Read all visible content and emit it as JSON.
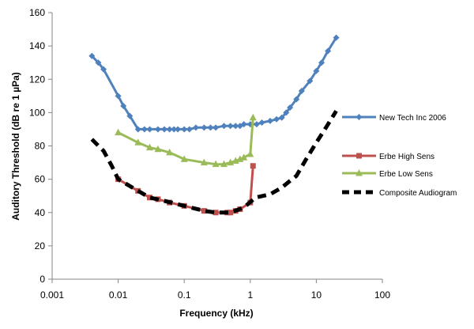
{
  "chart_data": {
    "type": "line",
    "title": "",
    "xlabel": "Frequency (kHz)",
    "ylabel": "Auditory Threshold (dB re 1 µPa)",
    "x_scale": "log",
    "xlim": [
      0.001,
      100
    ],
    "ylim": [
      0,
      160
    ],
    "x_ticks": [
      0.001,
      0.01,
      0.1,
      1,
      10,
      100
    ],
    "x_tick_labels": [
      "0.001",
      "0.01",
      "0.1",
      "1",
      "10",
      "100"
    ],
    "y_ticks": [
      0,
      20,
      40,
      60,
      80,
      100,
      120,
      140,
      160
    ],
    "y_tick_labels": [
      "0",
      "20",
      "40",
      "60",
      "80",
      "100",
      "120",
      "140",
      "160"
    ],
    "grid": false,
    "legend_position": "right",
    "series": [
      {
        "name": "New Tech Inc 2006",
        "color": "#4F81BD",
        "marker": "diamond",
        "line_style": "solid",
        "points": [
          [
            0.004,
            134
          ],
          [
            0.005,
            130
          ],
          [
            0.006,
            126
          ],
          [
            0.01,
            110
          ],
          [
            0.012,
            104
          ],
          [
            0.015,
            98
          ],
          [
            0.02,
            90
          ],
          [
            0.025,
            90
          ],
          [
            0.03,
            90
          ],
          [
            0.04,
            90
          ],
          [
            0.05,
            90
          ],
          [
            0.06,
            90
          ],
          [
            0.07,
            90
          ],
          [
            0.08,
            90
          ],
          [
            0.1,
            90
          ],
          [
            0.12,
            90
          ],
          [
            0.15,
            91
          ],
          [
            0.2,
            91
          ],
          [
            0.25,
            91
          ],
          [
            0.3,
            91
          ],
          [
            0.4,
            92
          ],
          [
            0.5,
            92
          ],
          [
            0.6,
            92
          ],
          [
            0.7,
            92
          ],
          [
            0.8,
            93
          ],
          [
            1,
            93
          ],
          [
            1.25,
            93
          ],
          [
            1.5,
            94
          ],
          [
            2,
            95
          ],
          [
            2.5,
            96
          ],
          [
            3,
            97
          ],
          [
            3.5,
            100
          ],
          [
            4,
            103
          ],
          [
            5,
            108
          ],
          [
            6,
            113
          ],
          [
            8,
            119
          ],
          [
            10,
            125
          ],
          [
            12,
            130
          ],
          [
            15,
            137
          ],
          [
            20,
            145
          ]
        ]
      },
      {
        "name": "Erbe High Sens",
        "color": "#C0504D",
        "marker": "square",
        "line_style": "solid",
        "points": [
          [
            0.01,
            60
          ],
          [
            0.02,
            53
          ],
          [
            0.03,
            49
          ],
          [
            0.04,
            48
          ],
          [
            0.06,
            46
          ],
          [
            0.1,
            44
          ],
          [
            0.2,
            41
          ],
          [
            0.3,
            40
          ],
          [
            0.45,
            40
          ],
          [
            0.5,
            40
          ],
          [
            0.6,
            41
          ],
          [
            0.7,
            42
          ],
          [
            1.0,
            46
          ],
          [
            1.1,
            68
          ]
        ]
      },
      {
        "name": "Erbe Low Sens",
        "color": "#9BBB59",
        "marker": "triangle",
        "line_style": "solid",
        "points": [
          [
            0.01,
            88
          ],
          [
            0.02,
            82
          ],
          [
            0.03,
            79
          ],
          [
            0.04,
            78
          ],
          [
            0.06,
            76
          ],
          [
            0.1,
            72
          ],
          [
            0.2,
            70
          ],
          [
            0.3,
            69
          ],
          [
            0.4,
            69
          ],
          [
            0.5,
            70
          ],
          [
            0.6,
            71
          ],
          [
            0.7,
            72
          ],
          [
            0.8,
            73
          ],
          [
            1.0,
            75
          ],
          [
            1.1,
            97
          ]
        ]
      },
      {
        "name": "Composite Audiogram",
        "color": "#000000",
        "marker": "none",
        "line_style": "dashed",
        "points": [
          [
            0.004,
            84
          ],
          [
            0.006,
            77
          ],
          [
            0.008,
            68
          ],
          [
            0.01,
            60
          ],
          [
            0.02,
            53
          ],
          [
            0.03,
            49
          ],
          [
            0.05,
            47
          ],
          [
            0.1,
            44
          ],
          [
            0.2,
            41
          ],
          [
            0.3,
            40
          ],
          [
            0.5,
            40
          ],
          [
            0.8,
            43
          ],
          [
            1.2,
            49
          ],
          [
            2,
            51
          ],
          [
            3,
            55
          ],
          [
            4,
            59
          ],
          [
            5,
            62
          ],
          [
            7,
            72
          ],
          [
            10,
            82
          ],
          [
            14,
            91
          ],
          [
            20,
            101
          ]
        ]
      }
    ]
  }
}
